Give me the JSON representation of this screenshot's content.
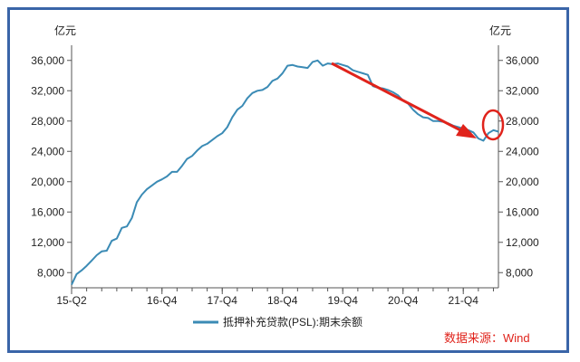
{
  "chart_data": {
    "type": "line",
    "title": "",
    "y_unit_left": "亿元",
    "y_unit_right": "亿元",
    "ylim": [
      6000,
      38000
    ],
    "yticks": [
      8000,
      12000,
      16000,
      20000,
      24000,
      28000,
      32000,
      36000
    ],
    "ytick_labels": [
      "8,000",
      "12,000",
      "16,000",
      "20,000",
      "24,000",
      "28,000",
      "32,000",
      "36,000"
    ],
    "xtick_labels": [
      "15-Q2",
      "16-Q4",
      "17-Q4",
      "18-Q4",
      "19-Q4",
      "20-Q4",
      "21-Q4"
    ],
    "xtick_index": [
      0,
      18,
      30,
      42,
      54,
      66,
      78
    ],
    "x": [
      "2015-04",
      "2015-05",
      "2015-06",
      "2015-07",
      "2015-08",
      "2015-09",
      "2015-10",
      "2015-11",
      "2015-12",
      "2016-01",
      "2016-02",
      "2016-03",
      "2016-04",
      "2016-05",
      "2016-06",
      "2016-07",
      "2016-08",
      "2016-09",
      "2016-10",
      "2016-11",
      "2016-12",
      "2017-01",
      "2017-02",
      "2017-03",
      "2017-04",
      "2017-05",
      "2017-06",
      "2017-07",
      "2017-08",
      "2017-09",
      "2017-10",
      "2017-11",
      "2017-12",
      "2018-01",
      "2018-02",
      "2018-03",
      "2018-04",
      "2018-05",
      "2018-06",
      "2018-07",
      "2018-08",
      "2018-09",
      "2018-10",
      "2018-11",
      "2018-12",
      "2019-01",
      "2019-02",
      "2019-03",
      "2019-04",
      "2019-05",
      "2019-06",
      "2019-07",
      "2019-08",
      "2019-09",
      "2019-10",
      "2019-11",
      "2019-12",
      "2020-01",
      "2020-02",
      "2020-03",
      "2020-04",
      "2020-05",
      "2020-06",
      "2020-07",
      "2020-08",
      "2020-09",
      "2020-10",
      "2020-11",
      "2020-12",
      "2021-01",
      "2021-02",
      "2021-03",
      "2021-04",
      "2021-05",
      "2021-06",
      "2021-07",
      "2021-08",
      "2021-09",
      "2021-10",
      "2021-11",
      "2021-12",
      "2022-01",
      "2022-02",
      "2022-03",
      "2022-04",
      "2022-05"
    ],
    "series": [
      {
        "name": "抵押补充贷款(PSL):期末余额",
        "color": "#3b8bb5",
        "values": [
          6400,
          7800,
          8300,
          8900,
          9600,
          10300,
          10800,
          10900,
          12200,
          12500,
          13900,
          14100,
          15200,
          17300,
          18300,
          19000,
          19500,
          20000,
          20300,
          20700,
          21300,
          21300,
          22100,
          23000,
          23400,
          24100,
          24700,
          25000,
          25500,
          26000,
          26400,
          27200,
          28500,
          29500,
          30000,
          31000,
          31700,
          32000,
          32100,
          32500,
          33300,
          33600,
          34300,
          35300,
          35400,
          35200,
          35100,
          35000,
          35800,
          36000,
          35300,
          35600,
          35500,
          35600,
          35400,
          35200,
          34700,
          34500,
          34300,
          34100,
          32600,
          32400,
          32300,
          32100,
          31800,
          31400,
          30700,
          30300,
          29500,
          28900,
          28500,
          28400,
          28000,
          28000,
          27900,
          27700,
          27400,
          27200,
          27000,
          26800,
          26500,
          25700,
          25400,
          26400,
          26800,
          26600
        ]
      }
    ],
    "legend": "bottom",
    "annotations": [
      "red-arrow-downward-trend",
      "red-circle-latest-uptick"
    ],
    "grid": false
  },
  "source_label": "数据来源：Wind",
  "colors": {
    "frame": "#3a65a8",
    "line": "#3b8bb5",
    "annotation": "#e0231b"
  }
}
